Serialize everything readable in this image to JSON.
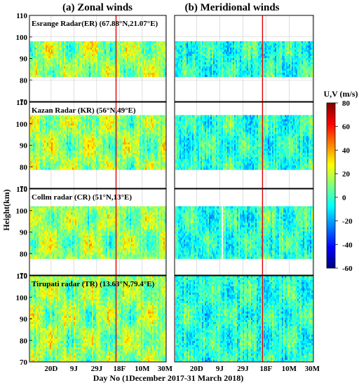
{
  "chart_data": {
    "type": "heatmap",
    "columns": [
      {
        "title": "(a) Zonal winds"
      },
      {
        "title": "(b) Meridional winds"
      }
    ],
    "ylabel": "Height(km)",
    "xlabel": "Day No (1December 2017-31 March 2018)",
    "x_ticks": [
      "20D",
      "9J",
      "29J",
      "18F",
      "10M",
      "30M"
    ],
    "x_tick_days": [
      20,
      40,
      60,
      80,
      100,
      120
    ],
    "x_range_days": [
      1,
      121
    ],
    "event_marker_day": 77,
    "event_marker_color": "#e00000",
    "panels": [
      {
        "label": "Esrange Radar(ER) (67.88°N,21.07°E)",
        "ylim": [
          70,
          110
        ],
        "y_ticks": [
          70,
          80,
          90,
          100,
          110
        ],
        "data_height_range": [
          82,
          98
        ]
      },
      {
        "label": "Kazan Radar (KR) (56°N,49°E)",
        "ylim": [
          70,
          110
        ],
        "y_ticks": [
          70,
          80,
          90,
          100,
          110
        ],
        "data_height_range": [
          79,
          104
        ]
      },
      {
        "label": "Collm radar (CR) (51°N,13°E)",
        "ylim": [
          70,
          110
        ],
        "y_ticks": [
          70,
          80,
          90,
          100,
          110
        ],
        "data_height_range": [
          78,
          102
        ]
      },
      {
        "label": "Tirupati radar (TR) (13.63°N,79.4°E)",
        "ylim": [
          70,
          110
        ],
        "y_ticks": [
          70,
          80,
          90,
          100,
          110
        ],
        "data_height_range": [
          70,
          110
        ]
      }
    ],
    "colorbar": {
      "title": "U,V (m/s)",
      "min": -60,
      "max": 80,
      "ticks": [
        80,
        60,
        40,
        20,
        0,
        -20,
        -40,
        -60
      ],
      "colormap": [
        "#00007f",
        "#0000ff",
        "#007fff",
        "#00ffff",
        "#7fff7f",
        "#ffff00",
        "#ff7f00",
        "#ff0000",
        "#7f0000"
      ]
    }
  }
}
